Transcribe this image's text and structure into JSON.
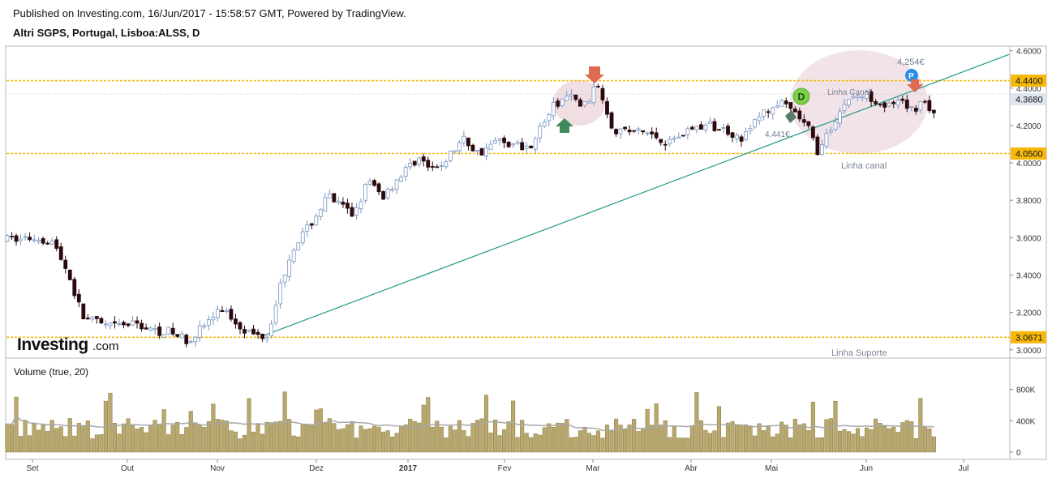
{
  "header": {
    "published": "Published on Investing.com, 16/Jun/2017 - 15:58:57 GMT, Powered by TradingView.",
    "symbol": "Altri SGPS, Portugal, Lisboa:ALSS, D"
  },
  "brand": {
    "logo_main": "Investing",
    "logo_suffix": ".com"
  },
  "colors": {
    "up_fill": "#ffffff",
    "up_stroke": "#7a95c4",
    "down_fill": "#2a0a0e",
    "level_line": "#f6b80b",
    "level_label_bg": "#f6b80b",
    "trend_line": "#1e9a87",
    "volume_bar": "#b9a86d",
    "volume_edge": "#8a7a3e",
    "volume_ma": "#a8a8a8",
    "last_price_label_bg": "#dfe5ef",
    "ellipse_fill": "#e3c2cc"
  },
  "volume_panel": {
    "label": "Volume (true, 20)",
    "ticks": [
      "800K",
      "400K",
      "0"
    ]
  },
  "annotations": {
    "linha_canal_main": "Linha canal",
    "linha_canal_small": "Linha Canal",
    "linha_suporte": "Linha Suporte",
    "price_note_1": "4,254€",
    "price_note_2": "4,441€",
    "badge_d": "D",
    "badge_p": "P"
  },
  "chart_data": {
    "type": "candlestick",
    "title": "Altri SGPS, Portugal, Lisboa:ALSS, D",
    "y_ticks": [
      "4.6000",
      "4.4000",
      "4.2000",
      "4.0000",
      "3.8000",
      "3.6000",
      "3.4000",
      "3.2000",
      "3.0000"
    ],
    "x_ticks": [
      "Set",
      "Out",
      "Nov",
      "Dez",
      "2017",
      "Fev",
      "Mar",
      "Abr",
      "Mai",
      "Jun",
      "Jul"
    ],
    "ylim": [
      2.96,
      4.62
    ],
    "levels": [
      {
        "value": 4.44,
        "label": "4.4400"
      },
      {
        "value": 4.05,
        "label": "4.0500"
      },
      {
        "value": 3.0671,
        "label": "3.0671"
      }
    ],
    "last_price": {
      "value": 4.368,
      "label": "4.3680"
    },
    "trend_line": {
      "from": {
        "t": 0.253,
        "v": 3.07
      },
      "to": {
        "t": 1.0,
        "v": 4.58
      }
    },
    "price_anchors": [
      [
        0.0,
        3.59
      ],
      [
        0.03,
        3.6
      ],
      [
        0.045,
        3.58
      ],
      [
        0.06,
        3.42
      ],
      [
        0.075,
        3.18
      ],
      [
        0.1,
        3.12
      ],
      [
        0.13,
        3.14
      ],
      [
        0.145,
        3.1
      ],
      [
        0.16,
        3.1
      ],
      [
        0.18,
        3.05
      ],
      [
        0.2,
        3.15
      ],
      [
        0.215,
        3.22
      ],
      [
        0.23,
        3.14
      ],
      [
        0.245,
        3.08
      ],
      [
        0.26,
        3.08
      ],
      [
        0.27,
        3.3
      ],
      [
        0.285,
        3.55
      ],
      [
        0.3,
        3.65
      ],
      [
        0.32,
        3.82
      ],
      [
        0.345,
        3.72
      ],
      [
        0.36,
        3.9
      ],
      [
        0.375,
        3.82
      ],
      [
        0.39,
        3.92
      ],
      [
        0.41,
        4.03
      ],
      [
        0.425,
        3.95
      ],
      [
        0.44,
        4.03
      ],
      [
        0.455,
        4.13
      ],
      [
        0.47,
        4.05
      ],
      [
        0.49,
        4.12
      ],
      [
        0.505,
        4.1
      ],
      [
        0.52,
        4.08
      ],
      [
        0.545,
        4.3
      ],
      [
        0.56,
        4.36
      ],
      [
        0.575,
        4.3
      ],
      [
        0.59,
        4.42
      ],
      [
        0.605,
        4.18
      ],
      [
        0.64,
        4.16
      ],
      [
        0.66,
        4.11
      ],
      [
        0.68,
        4.18
      ],
      [
        0.7,
        4.2
      ],
      [
        0.72,
        4.17
      ],
      [
        0.735,
        4.13
      ],
      [
        0.75,
        4.25
      ],
      [
        0.77,
        4.32
      ],
      [
        0.785,
        4.27
      ],
      [
        0.8,
        4.18
      ],
      [
        0.81,
        4.05
      ],
      [
        0.825,
        4.22
      ],
      [
        0.84,
        4.35
      ],
      [
        0.86,
        4.36
      ],
      [
        0.88,
        4.3
      ],
      [
        0.89,
        4.32
      ],
      [
        0.905,
        4.28
      ],
      [
        0.915,
        4.35
      ],
      [
        0.925,
        4.25
      ]
    ],
    "volume_ma_level": 330000,
    "volume_ylim": [
      0,
      1000000
    ]
  }
}
